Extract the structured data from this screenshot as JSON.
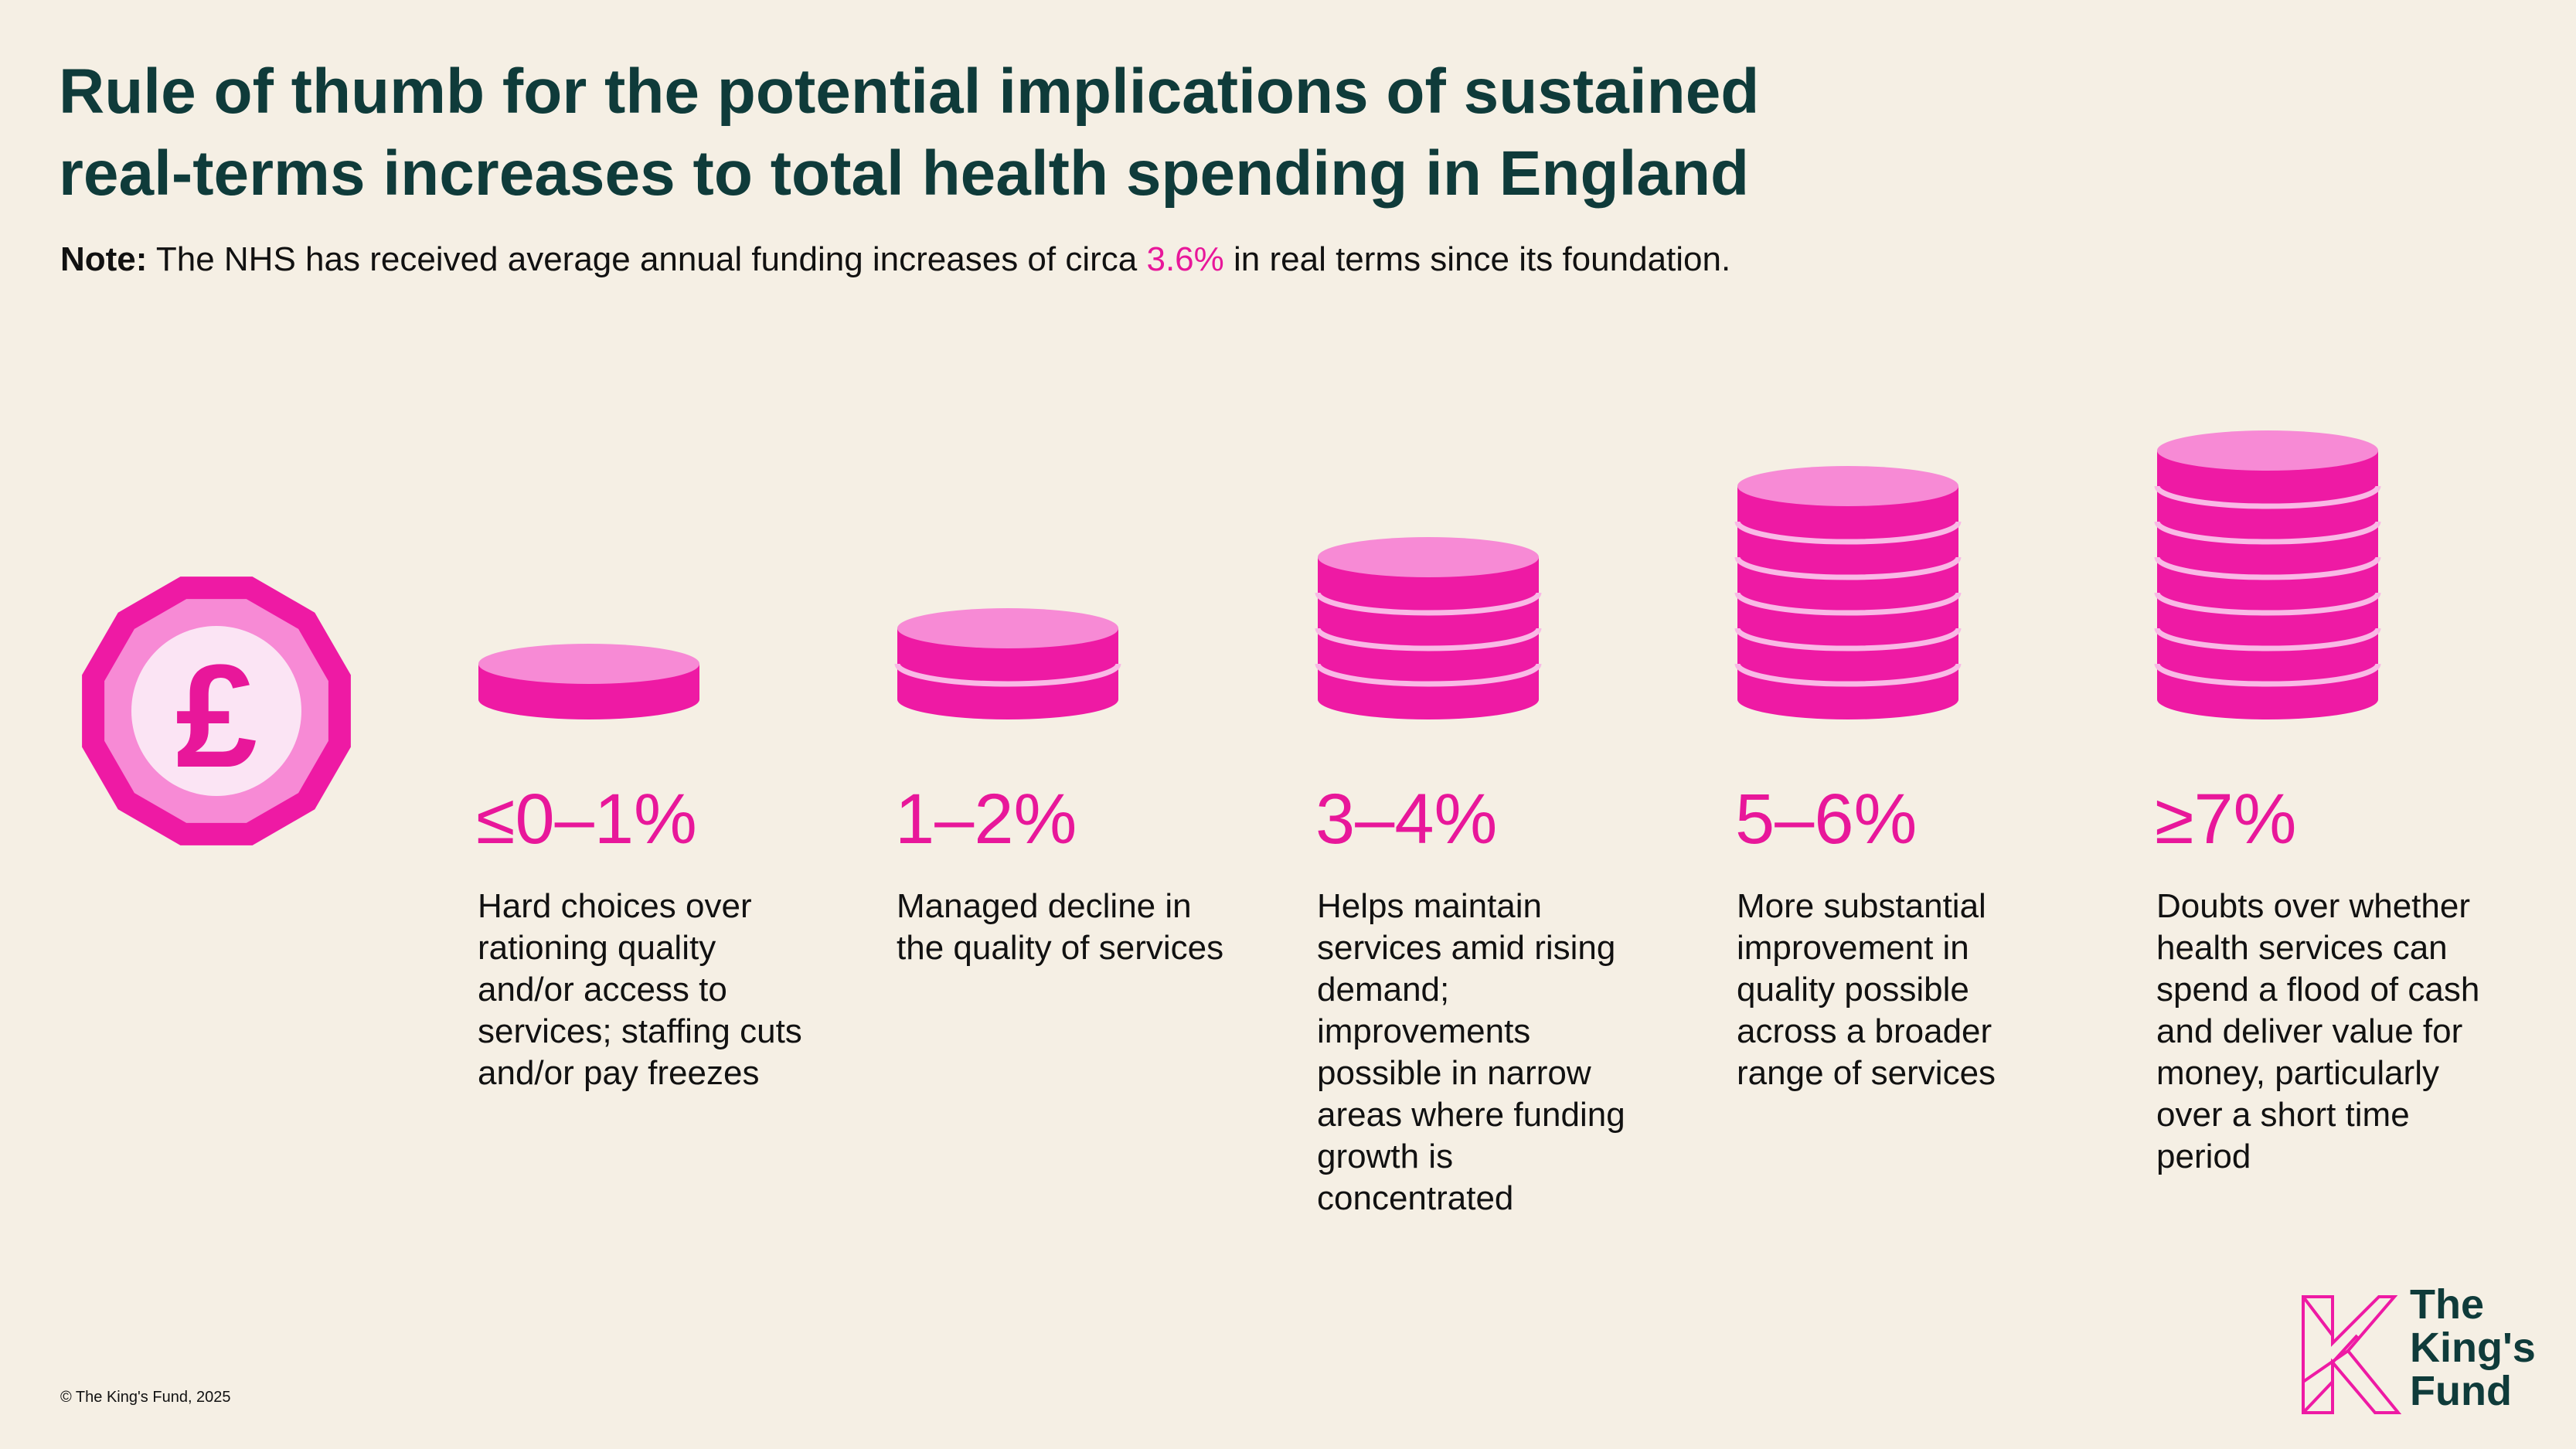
{
  "header": {
    "title_line1": "Rule of thumb for the potential implications of sustained",
    "title_line2": "real-terms increases to total health spending in England"
  },
  "note": {
    "label": "Note:",
    "text_before": " The NHS has received average annual funding increases of circa ",
    "highlight": "3.6%",
    "text_after": " in real terms since its foundation."
  },
  "icon": {
    "name": "pound-coin-icon",
    "symbol": "£"
  },
  "chart_data": {
    "type": "pictogram",
    "title": "Rule of thumb for the potential implications of sustained real-terms increases to total health spending in England",
    "categories": [
      "≤0–1%",
      "1–2%",
      "3–4%",
      "5–6%",
      "≥7%"
    ],
    "values": [
      1,
      2,
      4,
      6,
      7
    ],
    "unit": "coins in stack",
    "descriptions": [
      "Hard choices over rationing quality and/or access to services; staffing cuts and/or pay freezes",
      "Managed decline in the quality of services",
      "Helps maintain services amid rising demand; improvements possible in narrow areas where funding growth is concentrated",
      "More substantial improvement in quality possible across a broader range of services",
      "Doubts over whether health services can spend a flood of cash and deliver value for money, particularly over a short time period"
    ]
  },
  "footer": {
    "copyright": "© The King's Fund, 2025"
  },
  "logo": {
    "line1": "The",
    "line2": "King's",
    "line3": "Fund"
  },
  "colors": {
    "background": "#f5efe4",
    "title": "#0f3b3a",
    "accent": "#e8179a",
    "coin_side": "#ee1aa4",
    "coin_top": "#f78ad5",
    "coin_stripe": "#f9b9e6"
  }
}
